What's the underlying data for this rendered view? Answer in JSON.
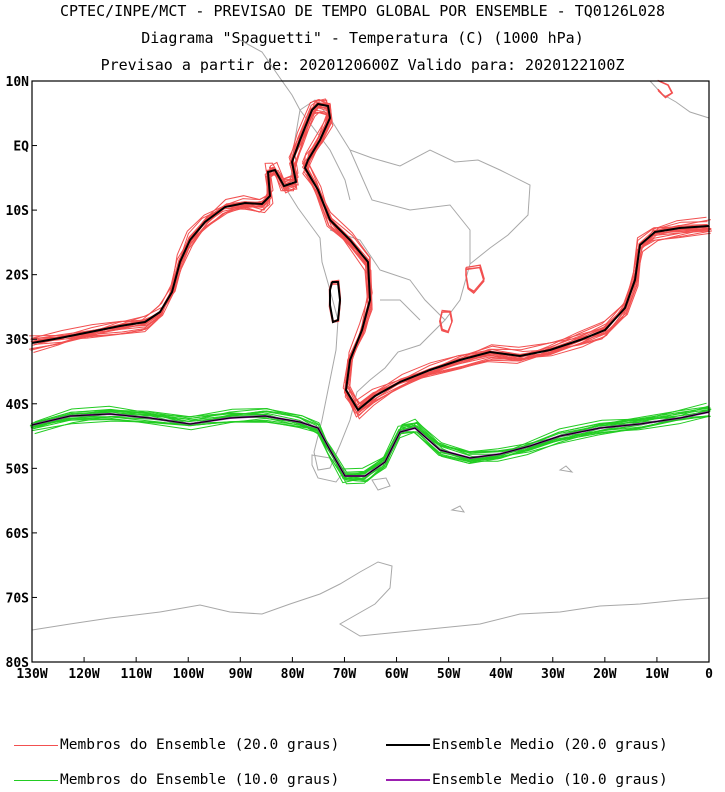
{
  "title": {
    "line1": "CPTEC/INPE/MCT - PREVISAO DE TEMPO GLOBAL POR ENSEMBLE - TQ0126L028",
    "line2": "Diagrama \"Spaguetti\" - Temperatura (C) (1000 hPa)",
    "line3": "Previsao a partir de: 2020120600Z  Valido para: 2020122100Z"
  },
  "map": {
    "lon_range": [
      -130,
      0
    ],
    "lat_range": [
      -80,
      10
    ],
    "lat_ticks": [
      "10N",
      "EQ",
      "10S",
      "20S",
      "30S",
      "40S",
      "50S",
      "60S",
      "70S",
      "80S"
    ],
    "lon_ticks": [
      "130W",
      "120W",
      "110W",
      "100W",
      "90W",
      "80W",
      "70W",
      "60W",
      "50W",
      "40W",
      "30W",
      "20W",
      "10W",
      "0"
    ]
  },
  "legend": [
    {
      "label": "Membros do Ensemble (20.0 graus)",
      "color": "#f25050"
    },
    {
      "label": "Ensemble Medio (20.0 graus)",
      "color": "#000000"
    },
    {
      "label": "Membros do Ensemble (10.0 graus)",
      "color": "#22cc22"
    },
    {
      "label": "Ensemble Medio (10.0 graus)",
      "color": "#9b1fb0"
    }
  ],
  "colors": {
    "member_20": "#f25050",
    "mean_20": "#000000",
    "member_10": "#22cc22",
    "mean_10": "#9b1fb0",
    "coastline": "#a8a8a8"
  }
}
